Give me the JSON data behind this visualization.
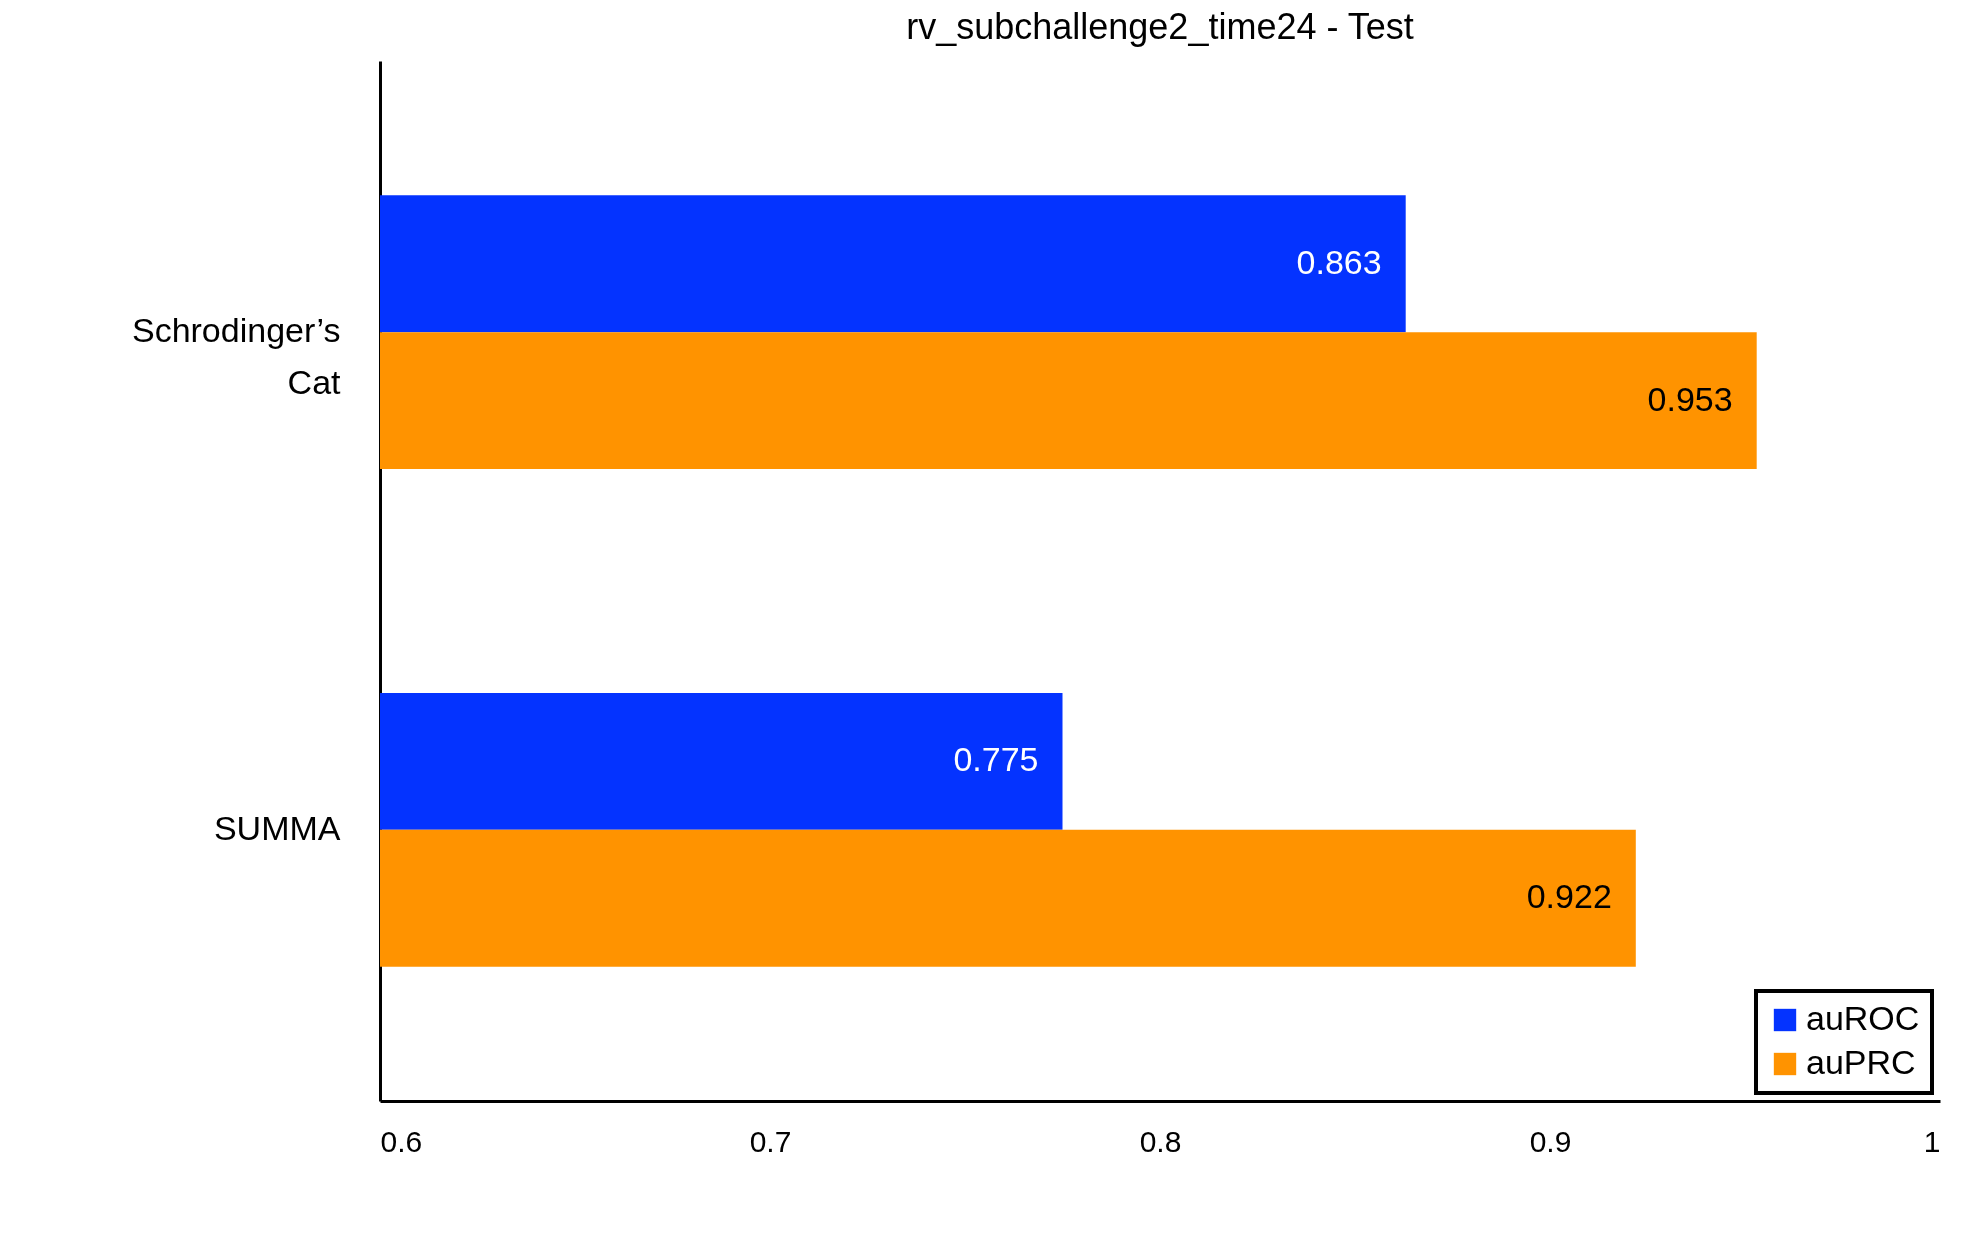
{
  "chart_data": {
    "type": "bar",
    "orientation": "horizontal",
    "title": "rv_subchallenge2_time24 - Test",
    "categories": [
      "Schrodinger’s Cat",
      "SUMMA"
    ],
    "series": [
      {
        "name": "auROC",
        "color": "#0433ff",
        "values": [
          0.863,
          0.775
        ]
      },
      {
        "name": "auPRC",
        "color": "#ff9300",
        "values": [
          0.953,
          0.922
        ]
      }
    ],
    "xlim": [
      0.6,
      1.0
    ],
    "xticks": [
      0.6,
      0.7,
      0.8,
      0.9,
      1
    ],
    "grid": false,
    "legend": "bottom right",
    "data_labels": true
  }
}
